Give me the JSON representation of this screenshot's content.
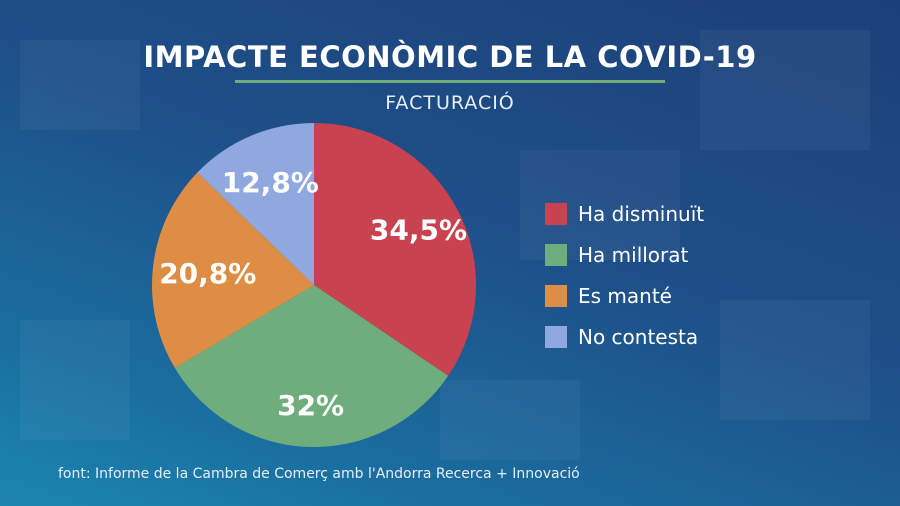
{
  "chart_data": {
    "type": "pie",
    "title": "IMPACTE ECONÒMIC DE LA COVID-19",
    "subtitle": "FACTURACIÓ",
    "legend_position": "right",
    "slices": [
      {
        "name": "Ha disminuït",
        "value": 34.5,
        "label": "34,5%",
        "color": "#c8424f"
      },
      {
        "name": "Ha millorat",
        "value": 32,
        "label": "32%",
        "color": "#6fae7c"
      },
      {
        "name": "Es manté",
        "value": 20.8,
        "label": "20,8%",
        "color": "#de8e44"
      },
      {
        "name": "No contesta",
        "value": 12.8,
        "label": "12,8%",
        "color": "#8fa8df"
      }
    ]
  },
  "source": "font: Informe de la Cambra de Comerç amb l'Andorra Recerca + Innovació"
}
